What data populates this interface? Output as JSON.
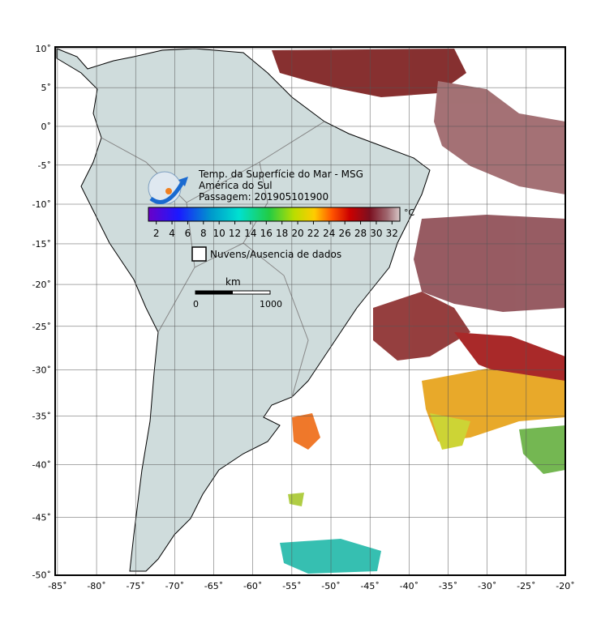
{
  "header": {
    "title": "Temp. da Superfície do Mar - MSG",
    "region": "América do Sul",
    "pass": "Passagem: 201905101900"
  },
  "colorbar": {
    "unit": "°C",
    "range": [
      1,
      33
    ],
    "ticks": [
      2,
      4,
      6,
      8,
      10,
      12,
      14,
      16,
      18,
      20,
      22,
      24,
      26,
      28,
      30,
      32
    ]
  },
  "legend": {
    "no_data": "Nuvens/Ausencia de dados"
  },
  "scale_bar": {
    "unit": "km",
    "start": 0,
    "end": 1000
  },
  "map": {
    "xlim": [
      -85.3,
      -20
    ],
    "ylim": [
      -50.05,
      10.2
    ],
    "xticks": [
      {
        "value": -85,
        "label": "-85˚"
      },
      {
        "value": -80,
        "label": "-80˚"
      },
      {
        "value": -75,
        "label": "-75˚"
      },
      {
        "value": -70,
        "label": "-70˚"
      },
      {
        "value": -65,
        "label": "-65˚"
      },
      {
        "value": -60,
        "label": "-60˚"
      },
      {
        "value": -55,
        "label": "-55˚"
      },
      {
        "value": -50,
        "label": "-50˚"
      },
      {
        "value": -45,
        "label": "-45˚"
      },
      {
        "value": -40,
        "label": "-40˚"
      },
      {
        "value": -35,
        "label": "-35˚"
      },
      {
        "value": -30,
        "label": "-30˚"
      },
      {
        "value": -25,
        "label": "-25˚"
      },
      {
        "value": -20,
        "label": "-20˚"
      }
    ],
    "yticks": [
      {
        "value": 10,
        "label": "10˚"
      },
      {
        "value": 5,
        "label": "5˚"
      },
      {
        "value": 0,
        "label": "0˚"
      },
      {
        "value": -5,
        "label": "-5˚"
      },
      {
        "value": -10,
        "label": "-10˚"
      },
      {
        "value": -15,
        "label": "-15˚"
      },
      {
        "value": -20,
        "label": "-20˚"
      },
      {
        "value": -25,
        "label": "-25˚"
      },
      {
        "value": -30,
        "label": "-30˚"
      },
      {
        "value": -35,
        "label": "-35˚"
      },
      {
        "value": -40,
        "label": "-40˚"
      },
      {
        "value": -45,
        "label": "-45˚"
      },
      {
        "value": -50,
        "label": "-50˚"
      }
    ]
  }
}
